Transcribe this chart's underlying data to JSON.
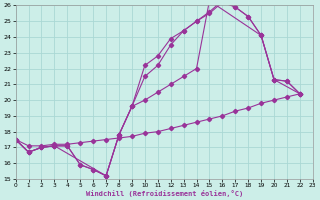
{
  "xlabel": "Windchill (Refroidissement éolien,°C)",
  "bg_color": "#cceee8",
  "grid_color": "#aad8d4",
  "line_color": "#993399",
  "xlim": [
    0,
    23
  ],
  "ylim": [
    15,
    26
  ],
  "xticks": [
    0,
    1,
    2,
    3,
    4,
    5,
    6,
    7,
    8,
    9,
    10,
    11,
    12,
    13,
    14,
    15,
    16,
    17,
    18,
    19,
    20,
    21,
    22,
    23
  ],
  "yticks": [
    15,
    16,
    17,
    18,
    19,
    20,
    21,
    22,
    23,
    24,
    25,
    26
  ],
  "curve1_x": [
    0,
    1,
    2,
    3,
    4,
    5,
    6,
    7,
    8,
    9,
    10,
    11,
    12,
    13,
    14,
    15,
    16,
    17,
    18,
    19,
    20,
    21,
    22
  ],
  "curve1_y": [
    17.5,
    16.7,
    17.0,
    17.1,
    17.1,
    15.9,
    15.6,
    15.2,
    17.8,
    19.6,
    22.2,
    22.8,
    23.9,
    24.4,
    25.0,
    25.6,
    26.3,
    25.9,
    25.3,
    24.1,
    21.3,
    21.2,
    20.4
  ],
  "curve2_x": [
    0,
    1,
    2,
    3,
    4,
    5,
    6,
    7,
    8,
    9,
    10,
    11,
    12,
    13,
    14,
    15,
    16,
    17,
    18,
    19,
    20,
    21,
    22
  ],
  "curve2_y": [
    17.5,
    16.7,
    17.0,
    17.1,
    17.1,
    15.9,
    15.6,
    15.2,
    17.8,
    19.6,
    21.5,
    22.2,
    23.5,
    24.4,
    25.0,
    25.5,
    26.2,
    25.9,
    25.3,
    24.1,
    21.3,
    21.2,
    20.4
  ],
  "curve3_x": [
    0,
    1,
    2,
    3,
    7,
    8,
    9,
    10,
    11,
    12,
    13,
    14,
    15,
    19,
    20,
    22
  ],
  "curve3_y": [
    17.5,
    16.7,
    17.0,
    17.1,
    15.2,
    17.8,
    19.6,
    20.0,
    20.5,
    21.0,
    21.5,
    22.0,
    26.3,
    24.1,
    21.3,
    20.4
  ],
  "curve4_x": [
    0,
    1,
    2,
    3,
    4,
    5,
    6,
    7,
    8,
    9,
    10,
    11,
    12,
    13,
    14,
    15,
    16,
    17,
    18,
    19,
    20,
    21,
    22
  ],
  "curve4_y": [
    17.5,
    17.1,
    17.1,
    17.2,
    17.2,
    17.3,
    17.4,
    17.5,
    17.6,
    17.7,
    17.9,
    18.0,
    18.2,
    18.4,
    18.6,
    18.8,
    19.0,
    19.3,
    19.5,
    19.8,
    20.0,
    20.2,
    20.4
  ]
}
